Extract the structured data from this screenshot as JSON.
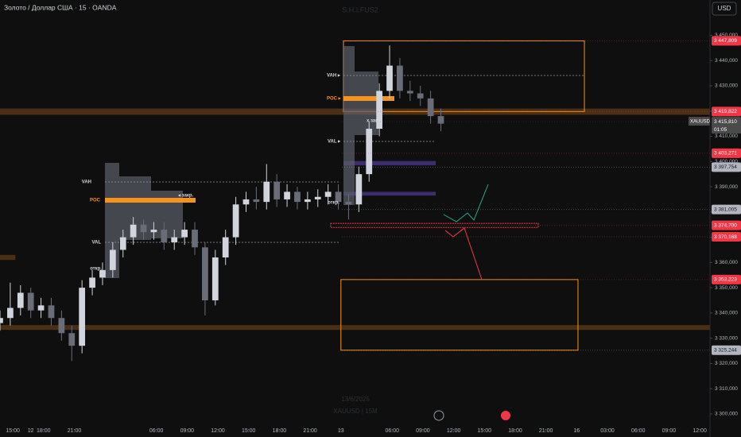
{
  "chart_data": {
    "type": "candlestick",
    "title": "Золото / Доллар США · 15 · OANDA",
    "currency": "USD",
    "watermark": "S.H.I.FUS2",
    "date_label": "13/6/2025",
    "symbol_label": "XAUUSD | 15M",
    "symbol_tag": "XAUUSD",
    "countdown": "01:05",
    "annotations": [
      "VAH",
      "POC",
      "VAL",
      "◂ закр.",
      "откр.",
      "VAH ▸",
      "POC ▸",
      "VAL ▸",
      "x закр.",
      "откр."
    ],
    "x": [
      0,
      4,
      8,
      12,
      16,
      20,
      24,
      28,
      32,
      36,
      40,
      44,
      48,
      52,
      56,
      60,
      64,
      68,
      72,
      76,
      80,
      84,
      88,
      92,
      96,
      100,
      104,
      108,
      112,
      116,
      120,
      124,
      128,
      132,
      136,
      140,
      144,
      148,
      152,
      156,
      160,
      164,
      168,
      172
    ],
    "open": [
      3336,
      3338,
      3342,
      3348,
      3341,
      3343,
      3338,
      3332,
      3327,
      3350,
      3354,
      3357,
      3365,
      3370,
      3375,
      3372,
      3373,
      3368,
      3370,
      3373,
      3366,
      3345,
      3362,
      3370,
      3383,
      3385,
      3384,
      3392,
      3385,
      3388,
      3384,
      3385,
      3386,
      3388,
      3384,
      3383,
      3395,
      3413,
      3428,
      3438,
      3428,
      3427,
      3425,
      3418
    ],
    "high": [
      3341,
      3352,
      3351,
      3350,
      3346,
      3346,
      3341,
      3335,
      3353,
      3357,
      3360,
      3368,
      3373,
      3378,
      3377,
      3376,
      3376,
      3373,
      3376,
      3376,
      3368,
      3365,
      3373,
      3386,
      3388,
      3390,
      3399,
      3395,
      3391,
      3390,
      3388,
      3389,
      3391,
      3391,
      3387,
      3398,
      3416,
      3431,
      3446,
      3441,
      3432,
      3430,
      3428,
      3421
    ],
    "low": [
      3333,
      3335,
      3339,
      3338,
      3338,
      3335,
      3329,
      3321,
      3324,
      3347,
      3351,
      3354,
      3362,
      3367,
      3369,
      3369,
      3365,
      3365,
      3367,
      3363,
      3339,
      3343,
      3359,
      3367,
      3380,
      3381,
      3381,
      3382,
      3382,
      3381,
      3381,
      3382,
      3383,
      3381,
      3377,
      3380,
      3392,
      3410,
      3425,
      3425,
      3424,
      3422,
      3415,
      3412
    ],
    "close": [
      3338,
      3342,
      3348,
      3341,
      3343,
      3338,
      3332,
      3327,
      3350,
      3354,
      3357,
      3365,
      3370,
      3375,
      3372,
      3373,
      3368,
      3370,
      3373,
      3366,
      3345,
      3362,
      3370,
      3383,
      3385,
      3384,
      3392,
      3385,
      3388,
      3384,
      3385,
      3386,
      3388,
      3384,
      3383,
      3395,
      3413,
      3428,
      3438,
      3428,
      3427,
      3425,
      3418,
      3415
    ],
    "up_color": "#d1d4dc",
    "down_color": "#6a6d78",
    "xlim": [
      0,
      277
    ],
    "xticks": [
      {
        "value": 5,
        "label": "15:00"
      },
      {
        "value": 17,
        "label": "18:00"
      },
      {
        "value": 29,
        "label": "21:00"
      },
      12,
      {
        "value": 61,
        "label": "06:00"
      },
      {
        "value": 73,
        "label": "09:00"
      },
      {
        "value": 85,
        "label": "12:00"
      },
      {
        "value": 97,
        "label": "15:00"
      },
      {
        "value": 109,
        "label": "18:00"
      },
      {
        "value": 121,
        "label": "21:00"
      },
      {
        "value": 133,
        "label": "13"
      },
      {
        "value": 153,
        "label": "06:00"
      },
      {
        "value": 165,
        "label": "09:00"
      },
      {
        "value": 177,
        "label": "12:00"
      },
      {
        "value": 189,
        "label": "15:00"
      },
      {
        "value": 201,
        "label": "18:00"
      },
      {
        "value": 213,
        "label": "21:00"
      },
      {
        "value": 225,
        "label": "16"
      },
      {
        "value": 237,
        "label": "03:00"
      },
      {
        "value": 249,
        "label": "06:00"
      },
      {
        "value": 261,
        "label": "09:00"
      },
      {
        "value": 273,
        "label": "12:00"
      }
    ],
    "ylim": [
      3294,
      3464
    ],
    "yticks": [
      {
        "value": 3300,
        "label": "3 300,000"
      },
      {
        "value": 3310,
        "label": "3 310,000"
      },
      {
        "value": 3320,
        "label": "3 320,000"
      },
      {
        "value": 3330,
        "label": "3 330,000"
      },
      {
        "value": 3340,
        "label": "3 340,000"
      },
      {
        "value": 3350,
        "label": "3 350,000"
      },
      {
        "value": 3360,
        "label": "3 360,000"
      },
      {
        "value": 3370,
        "label": "3 370,000"
      },
      {
        "value": 3380,
        "label": "3 380,000"
      },
      {
        "value": 3390,
        "label": "3 390,000"
      },
      {
        "value": 3400,
        "label": "3 400,000"
      },
      {
        "value": 3410,
        "label": "3 410,000"
      },
      {
        "value": 3420,
        "label": "3 420,000"
      },
      {
        "value": 3430,
        "label": "3 430,000"
      },
      {
        "value": 3440,
        "label": "3 440,000"
      },
      {
        "value": 3450,
        "label": "3 450,000"
      }
    ],
    "price_labels": [
      {
        "value": 3447.809,
        "label": "3 447,809",
        "color": "#f23645"
      },
      {
        "value": 3419.822,
        "label": "3 419,822",
        "color": "#f23645"
      },
      {
        "value": 3415.81,
        "label": "3 415,810",
        "color": "#4a4a4a"
      },
      {
        "value": 3403.271,
        "label": "3 403,271",
        "color": "#f23645"
      },
      {
        "value": 3397.754,
        "label": "3 397,754",
        "color": "#b2b5be"
      },
      {
        "value": 3381.005,
        "label": "3 381,005",
        "color": "#b2b5be"
      },
      {
        "value": 3374.7,
        "label": "3 374,700",
        "color": "#f23645"
      },
      {
        "value": 3370.168,
        "label": "3 370,168",
        "color": "#f23645"
      },
      {
        "value": 3353.223,
        "label": "3 353,223",
        "color": "#f23645"
      },
      {
        "value": 3325.244,
        "label": "3 325,244",
        "color": "#b2b5be"
      }
    ],
    "zones": [
      {
        "x": [
          0,
          277
        ],
        "y": [
          3418.5,
          3421
        ],
        "color": "#4a2f14",
        "style": "fill"
      },
      {
        "x": [
          0,
          277
        ],
        "y": [
          3333.3,
          3335.2
        ],
        "color": "#4a2f14",
        "style": "fill"
      },
      {
        "x": [
          0,
          6
        ],
        "y": [
          3361,
          3363
        ],
        "color": "#4a2f14",
        "style": "fill"
      },
      {
        "x": [
          134,
          170
        ],
        "y": [
          3398.5,
          3400.2
        ],
        "color": "#3b2d6e",
        "style": "fill"
      },
      {
        "x": [
          134,
          170
        ],
        "y": [
          3386.5,
          3388
        ],
        "color": "#3b2d6e",
        "style": "fill"
      },
      {
        "x": [
          134,
          228
        ],
        "y": [
          3419.822,
          3447.809
        ],
        "color": "#f7931a",
        "style": "box"
      },
      {
        "x": [
          133,
          225.5
        ],
        "y": [
          3325.244,
          3353.223
        ],
        "color": "#f7931a",
        "style": "box"
      },
      {
        "x": [
          129,
          210
        ],
        "y": [
          3373.9,
          3375.5
        ],
        "color": "#f23645",
        "style": "dashed"
      }
    ]
  }
}
